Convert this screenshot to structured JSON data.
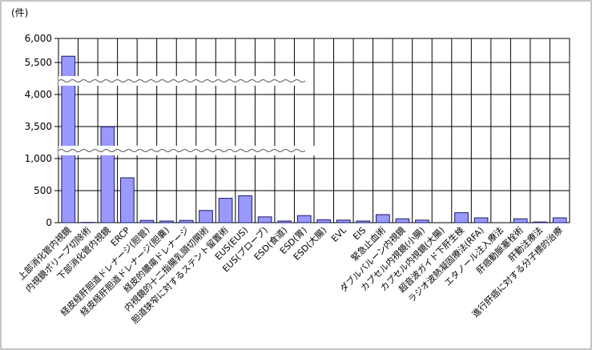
{
  "unit_label": "(件)",
  "colors": {
    "bar": "#9999ff",
    "bar_stroke": "#1a1a66",
    "grid": "#000000",
    "frame": "#808080"
  },
  "chart_data": {
    "type": "bar",
    "title": "",
    "xlabel": "",
    "ylabel": "(件)",
    "broken_axis": true,
    "axis_segments": [
      {
        "from": 0,
        "to": 1000,
        "ticks": [
          0,
          500,
          1000
        ]
      },
      {
        "from": 3000,
        "to": 3500,
        "ticks": [
          3500
        ]
      },
      {
        "from": 4000,
        "to": 6000,
        "ticks": [
          4000,
          5500,
          6000
        ],
        "visible_range": [
          3950,
          6000
        ]
      }
    ],
    "tick_labels": [
      "0",
      "500",
      "1,000",
      "3,500",
      "4,000",
      "5,500",
      "6,000"
    ],
    "grid": true,
    "legend": "none",
    "categories": [
      "上部消化管内視鏡",
      "内視鏡ポリープ切除術",
      "下部消化管内視鏡",
      "ERCP",
      "経皮経肝胆道ドレナージ(胆管)",
      "経皮経肝胆道ドレナージ(胆嚢)",
      "経皮的膿瘍ドレナージ",
      "内視鏡的十二指腸乳頭切開術",
      "胆道狭窄に対するステント留置術",
      "EUS(EUS)",
      "EUS(プローブ)",
      "ESD(食道)",
      "ESD(胃)",
      "ESD(大腸)",
      "EVL",
      "EIS",
      "緊急止血術",
      "ダブルバルーン内視鏡",
      "カプセル内視鏡(小腸)",
      "カプセル内視鏡(大腸)",
      "超音波ガイド下肝生検",
      "ラジオ波熱凝固療法(RFA)",
      "エタノール注入療法",
      "肝癌動脈塞栓術",
      "肝動注療法",
      "進行肝癌に対する分子標的治療"
    ],
    "values": [
      5630,
      5,
      3480,
      700,
      35,
      25,
      35,
      190,
      380,
      420,
      90,
      25,
      110,
      45,
      40,
      25,
      125,
      60,
      40,
      0,
      155,
      75,
      0,
      60,
      10,
      75
    ]
  }
}
